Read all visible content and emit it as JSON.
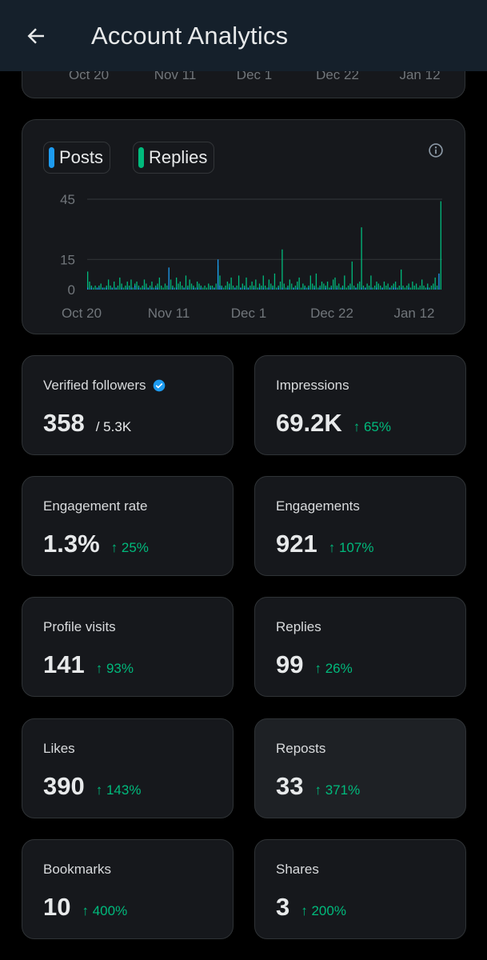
{
  "header": {
    "title": "Account Analytics"
  },
  "prev_chart": {
    "x_labels": [
      "Oct 20",
      "Nov 11",
      "Dec 1",
      "Dec 22",
      "Jan 12"
    ]
  },
  "chart_data": {
    "type": "bar",
    "legend": [
      {
        "name": "Posts",
        "color": "#1d9bf0"
      },
      {
        "name": "Replies",
        "color": "#00ba7c"
      }
    ],
    "x_tick_labels": [
      "Oct 20",
      "Nov 11",
      "Dec 1",
      "Dec 22",
      "Jan 12"
    ],
    "y_ticks": [
      0,
      15,
      45
    ],
    "ylim": [
      0,
      45
    ],
    "xlabel": "",
    "ylabel": "",
    "series": [
      {
        "name": "Posts",
        "values": [
          1,
          0,
          1,
          0,
          0,
          1,
          1,
          0,
          1,
          0,
          1,
          0,
          0,
          1,
          0,
          1,
          0,
          0,
          1,
          0,
          0,
          1,
          0,
          1,
          0,
          2,
          0,
          1,
          0,
          0,
          1,
          0,
          1,
          0,
          1,
          0,
          1,
          1,
          0,
          0,
          0,
          0,
          0,
          11,
          0,
          1,
          0,
          1,
          0,
          0,
          0,
          1,
          0,
          1,
          0,
          0,
          1,
          0,
          1,
          0,
          1,
          0,
          0,
          0,
          0,
          1,
          0,
          1,
          0,
          15,
          2,
          1,
          0,
          0,
          0,
          1,
          0,
          0,
          1,
          0,
          0,
          1,
          0,
          1,
          0,
          1,
          0,
          0,
          1,
          0,
          0,
          1,
          0,
          1,
          0,
          0,
          1,
          0,
          1,
          0,
          0,
          1,
          0,
          1,
          0,
          0,
          1,
          0,
          0,
          1,
          0,
          1,
          0,
          0,
          0,
          1,
          0,
          1,
          0,
          0,
          1,
          0,
          0,
          1,
          0,
          0,
          1,
          0,
          0,
          1,
          0,
          0,
          1,
          0,
          0,
          1,
          0,
          0,
          0,
          1,
          0,
          0,
          1,
          0,
          0,
          1,
          0,
          1,
          0,
          0,
          1,
          0,
          0,
          1,
          0,
          0,
          1,
          0,
          0,
          0,
          1,
          0,
          1,
          1,
          0,
          0,
          1,
          0,
          0,
          0,
          1,
          0,
          0,
          0,
          0,
          0,
          0,
          0,
          0,
          0,
          1,
          0,
          0,
          0,
          1,
          0,
          8
        ]
      },
      {
        "name": "Replies",
        "values": [
          9,
          4,
          2,
          1,
          2,
          1,
          2,
          3,
          1,
          1,
          2,
          5,
          2,
          1,
          4,
          1,
          2,
          6,
          3,
          1,
          2,
          4,
          2,
          5,
          1,
          3,
          4,
          2,
          1,
          2,
          5,
          3,
          1,
          2,
          4,
          1,
          2,
          3,
          6,
          2,
          1,
          3,
          2,
          1,
          5,
          2,
          1,
          6,
          3,
          4,
          2,
          1,
          7,
          2,
          5,
          3,
          2,
          1,
          4,
          3,
          2,
          1,
          2,
          1,
          3,
          2,
          2,
          1,
          3,
          12,
          7,
          2,
          1,
          2,
          4,
          3,
          6,
          2,
          1,
          2,
          7,
          1,
          3,
          2,
          6,
          1,
          2,
          4,
          2,
          5,
          1,
          3,
          2,
          7,
          2,
          1,
          5,
          3,
          2,
          8,
          1,
          2,
          4,
          20,
          3,
          1,
          2,
          5,
          3,
          1,
          2,
          4,
          6,
          1,
          3,
          2,
          1,
          2,
          7,
          3,
          2,
          8,
          1,
          2,
          4,
          3,
          2,
          4,
          1,
          2,
          5,
          6,
          2,
          3,
          1,
          2,
          7,
          1,
          2,
          3,
          14,
          2,
          1,
          3,
          4,
          31,
          2,
          1,
          3,
          2,
          7,
          1,
          2,
          4,
          3,
          2,
          1,
          4,
          2,
          3,
          1,
          2,
          3,
          4,
          1,
          2,
          10,
          2,
          1,
          2,
          3,
          1,
          4,
          2,
          3,
          1,
          2,
          5,
          2,
          1,
          3,
          1,
          2,
          3,
          6,
          2,
          1,
          44
        ]
      }
    ]
  },
  "stats": [
    {
      "label": "Verified followers",
      "value": "358",
      "sub": "/ 5.3K",
      "verified": true
    },
    {
      "label": "Impressions",
      "value": "69.2K",
      "change": "↑ 65%"
    },
    {
      "label": "Engagement rate",
      "value": "1.3%",
      "change": "↑ 25%"
    },
    {
      "label": "Engagements",
      "value": "921",
      "change": "↑ 107%"
    },
    {
      "label": "Profile visits",
      "value": "141",
      "change": "↑ 93%"
    },
    {
      "label": "Replies",
      "value": "99",
      "change": "↑ 26%"
    },
    {
      "label": "Likes",
      "value": "390",
      "change": "↑ 143%"
    },
    {
      "label": "Reposts",
      "value": "33",
      "change": "↑ 371%"
    },
    {
      "label": "Bookmarks",
      "value": "10",
      "change": "↑ 400%"
    },
    {
      "label": "Shares",
      "value": "3",
      "change": "↑ 200%"
    }
  ]
}
